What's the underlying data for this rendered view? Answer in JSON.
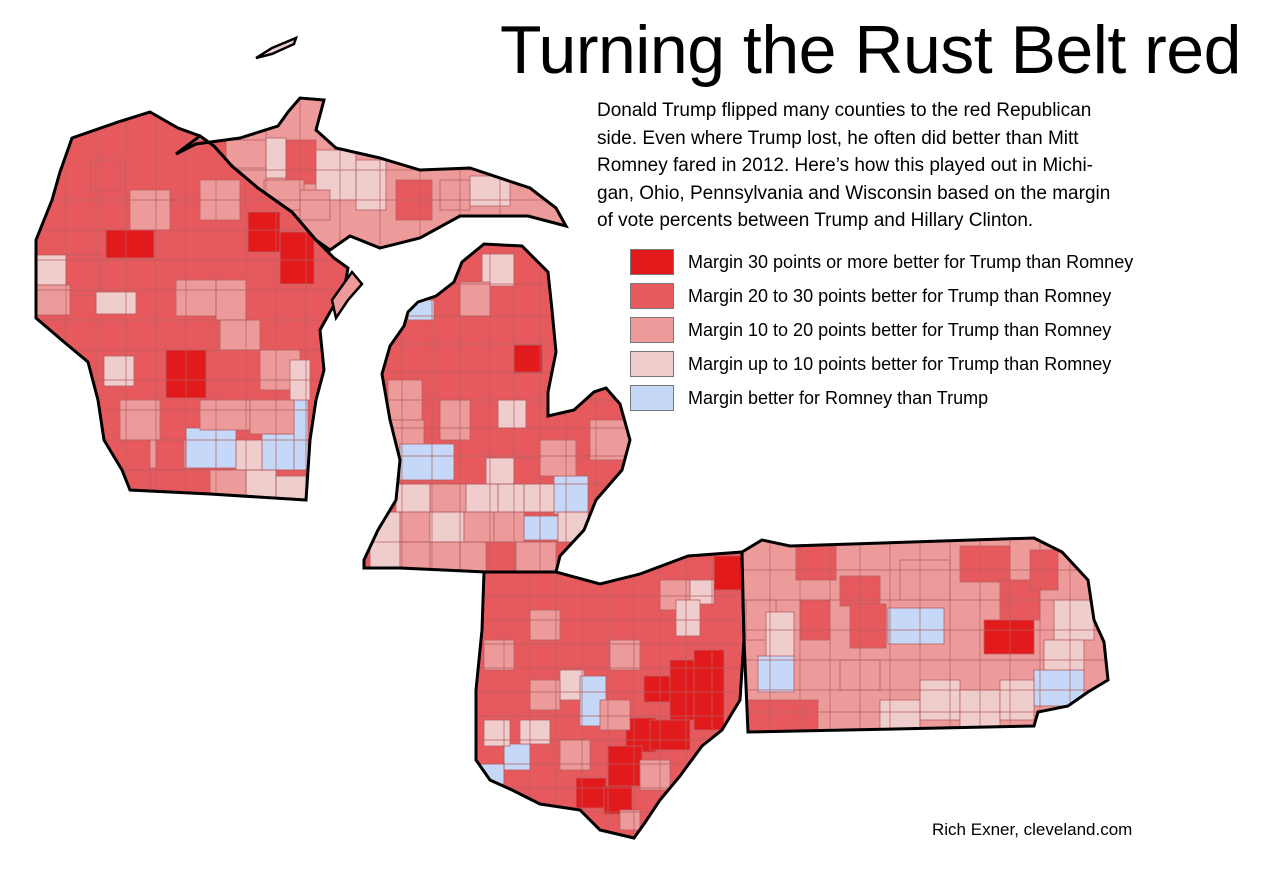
{
  "title": "Turning the Rust Belt red",
  "intro_lines": [
    "Donald Trump flipped many counties to the red Republican",
    "side. Even where Trump lost, he often did better than Mitt",
    "Romney fared in 2012. Here’s how this played out in Michi-",
    "gan, Ohio, Pennsylvania and Wisconsin based on the margin",
    "of vote percents between Trump and Hillary Clinton."
  ],
  "legend": [
    {
      "label": "Margin 30 points or more better for Trump than Romney",
      "color": "#e31a1c"
    },
    {
      "label": "Margin 20 to 30 points better for Trump than Romney",
      "color": "#e65a5e"
    },
    {
      "label": "Margin 10 to 20 points better for Trump than Romney",
      "color": "#ec9a9a"
    },
    {
      "label": "Margin up to 10 points better for Trump than Romney",
      "color": "#f0cdcd"
    },
    {
      "label": "Margin better for Romney than Trump",
      "color": "#c5d8f7"
    }
  ],
  "credit": "Rich Exner, cleveland.com",
  "states": [
    "Wisconsin",
    "Michigan",
    "Ohio",
    "Pennsylvania"
  ],
  "colors": {
    "border": "#000000",
    "county_line": "#b06060"
  }
}
